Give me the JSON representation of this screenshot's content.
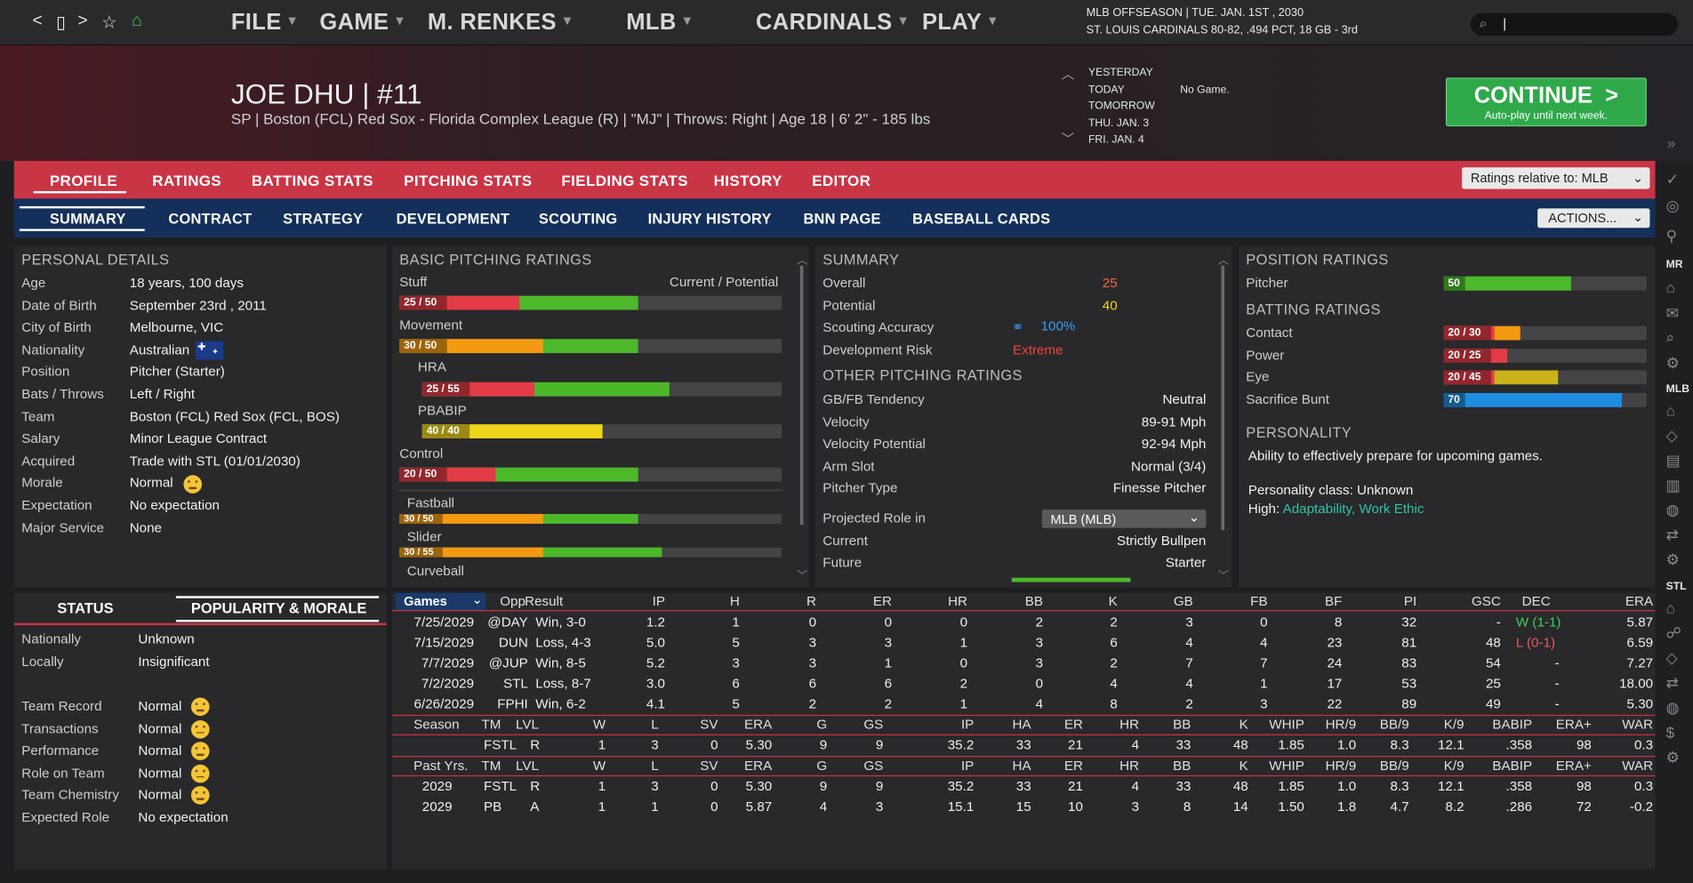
{
  "nav": {
    "back": "<",
    "page": "▯",
    "forward": ">",
    "star": "☆",
    "home": "⌂"
  },
  "menus": [
    "FILE",
    "GAME",
    "M. RENKES",
    "MLB",
    "CARDINALS",
    "PLAY"
  ],
  "info": {
    "line1": "MLB OFFSEASON  |  TUE. JAN. 1ST , 2030",
    "line2": "ST. LOUIS CARDINALS  80-82, .494 PCT, 18 GB - 3rd"
  },
  "search": {
    "value": "|"
  },
  "player": {
    "name": "JOE DHU  |  #11",
    "line": "SP | Boston (FCL) Red Sox - Florida Complex League (R)  |  \"MJ\" | Throws: Right  |  Age 18  |  6' 2\" - 185 lbs"
  },
  "schedule": {
    "days": [
      "YESTERDAY",
      "TODAY",
      "TOMORROW",
      "THU. JAN. 3",
      "FRI. JAN. 4"
    ],
    "today_note": "No Game."
  },
  "continue": {
    "label": "CONTINUE",
    "arrow": ">",
    "sub": "Auto-play until next week."
  },
  "tabs_main": [
    "PROFILE",
    "RATINGS",
    "BATTING STATS",
    "PITCHING STATS",
    "FIELDING STATS",
    "HISTORY",
    "EDITOR"
  ],
  "ratings_relative": "Ratings relative to: MLB",
  "tabs_sub": [
    "SUMMARY",
    "CONTRACT",
    "STRATEGY",
    "DEVELOPMENT",
    "SCOUTING",
    "INJURY HISTORY",
    "BNN PAGE",
    "BASEBALL CARDS"
  ],
  "actions": "ACTIONS...",
  "personal": {
    "title": "PERSONAL DETAILS",
    "rows": [
      {
        "label": "Age",
        "value": "18 years, 100 days"
      },
      {
        "label": "Date of Birth",
        "value": "September 23rd , 2011"
      },
      {
        "label": "City of Birth",
        "value": "Melbourne, VIC"
      },
      {
        "label": "Nationality",
        "value": "Australian"
      },
      {
        "label": "Position",
        "value": "Pitcher (Starter)"
      },
      {
        "label": "Bats / Throws",
        "value": "Left / Right"
      },
      {
        "label": "Team",
        "value": "Boston (FCL) Red Sox (FCL, BOS)"
      },
      {
        "label": "Salary",
        "value": "Minor League Contract"
      },
      {
        "label": "Acquired",
        "value": "Trade with STL (01/01/2030)"
      },
      {
        "label": "Morale",
        "value": "Normal"
      },
      {
        "label": "Expectation",
        "value": "No expectation"
      },
      {
        "label": "Major Service",
        "value": "None"
      }
    ]
  },
  "pitching": {
    "title": "BASIC PITCHING RATINGS",
    "legend": "Current / Potential",
    "colors": {
      "red": "#e23b46",
      "orange": "#f39a12",
      "yellow": "#f0d51a",
      "green": "#4cb82a",
      "blue": "#1f8de0"
    },
    "items": [
      {
        "label": "Stuff",
        "badge": "25 / 50",
        "cur": 25,
        "pot": 50,
        "color": "#e23b46"
      },
      {
        "label": "Movement",
        "badge": "30 / 50",
        "cur": 30,
        "pot": 50,
        "color": "#f39a12"
      },
      {
        "label": "HRA",
        "badge": "25 / 55",
        "cur": 25,
        "pot": 55,
        "color": "#e23b46"
      },
      {
        "label": "PBABIP",
        "badge": "40 / 40",
        "cur": 40,
        "pot": 40,
        "color": "#f0d51a"
      },
      {
        "label": "Control",
        "badge": "20 / 50",
        "cur": 20,
        "pot": 50,
        "color": "#e23b46"
      },
      {
        "label": "Fastball",
        "badge": "30 / 50",
        "cur": 30,
        "pot": 50,
        "color": "#f39a12"
      },
      {
        "label": "Slider",
        "badge": "30 / 55",
        "cur": 30,
        "pot": 55,
        "color": "#f39a12"
      },
      {
        "label": "Curveball",
        "badge": "",
        "cur": 0,
        "pot": 0,
        "color": "#f39a12"
      }
    ]
  },
  "summary": {
    "title": "SUMMARY",
    "overall_label": "Overall",
    "overall": "25",
    "potential_label": "Potential",
    "potential": "40",
    "accuracy_label": "Scouting Accuracy",
    "accuracy": "100%",
    "risk_label": "Development Risk",
    "risk": "Extreme",
    "other_title": "OTHER PITCHING RATINGS",
    "other": [
      {
        "label": "GB/FB Tendency",
        "value": "Neutral"
      },
      {
        "label": "Velocity",
        "value": "89-91 Mph"
      },
      {
        "label": "Velocity Potential",
        "value": "92-94 Mph"
      },
      {
        "label": "Arm Slot",
        "value": "Normal (3/4)"
      },
      {
        "label": "Pitcher Type",
        "value": "Finesse Pitcher"
      }
    ],
    "projected_label": "Projected Role in",
    "projected_value": "MLB (MLB)",
    "current_label": "Current",
    "current_value": "Strictly Bullpen",
    "future_label": "Future",
    "future_value": "Starter"
  },
  "position": {
    "title": "POSITION RATINGS",
    "items": [
      {
        "label": "Pitcher",
        "badge": "50",
        "cur": 50,
        "pot": 50,
        "color": "#4cb82a"
      }
    ],
    "batting_title": "BATTING RATINGS",
    "batting": [
      {
        "label": "Contact",
        "badge": "20 / 30",
        "cur": 20,
        "pot": 30,
        "color": "#e23b46",
        "potcolor": "#f39a12"
      },
      {
        "label": "Power",
        "badge": "20 / 25",
        "cur": 20,
        "pot": 25,
        "color": "#e23b46",
        "potcolor": "#e23b46"
      },
      {
        "label": "Eye",
        "badge": "20 / 45",
        "cur": 20,
        "pot": 45,
        "color": "#e23b46",
        "potcolor": "#c9b21a"
      },
      {
        "label": "Sacrifice Bunt",
        "badge": "70",
        "cur": 70,
        "pot": 70,
        "color": "#1f8de0",
        "potcolor": "#1f8de0"
      }
    ],
    "personality_title": "PERSONALITY",
    "personality_text": "Ability to effectively prepare for upcoming games.",
    "personality_class": "Personality class: Unknown",
    "high_label": "High:",
    "high_value": "Adaptability, Work Ethic"
  },
  "status": {
    "tab1": "STATUS",
    "tab2": "POPULARITY & MORALE",
    "rows1": [
      {
        "label": "Nationally",
        "value": "Unknown"
      },
      {
        "label": "Locally",
        "value": "Insignificant"
      }
    ],
    "rows2": [
      {
        "label": "Team Record",
        "value": "Normal"
      },
      {
        "label": "Transactions",
        "value": "Normal"
      },
      {
        "label": "Performance",
        "value": "Normal"
      },
      {
        "label": "Role on Team",
        "value": "Normal"
      },
      {
        "label": "Team Chemistry",
        "value": "Normal"
      },
      {
        "label": "Expected Role",
        "value": "No expectation"
      }
    ]
  },
  "games": {
    "select": "Games",
    "headers": [
      "Opp",
      "Result",
      "IP",
      "H",
      "R",
      "ER",
      "HR",
      "BB",
      "K",
      "GB",
      "FB",
      "BF",
      "PI",
      "GSC",
      "DEC",
      "ERA"
    ],
    "rows": [
      [
        "7/25/2029",
        "@DAY",
        "Win, 3-0",
        "1.2",
        "1",
        "0",
        "0",
        "0",
        "2",
        "2",
        "3",
        "0",
        "8",
        "32",
        "-",
        "W (1-1)",
        "5.87"
      ],
      [
        "7/15/2029",
        "DUN",
        "Loss, 4-3",
        "5.0",
        "5",
        "3",
        "3",
        "1",
        "3",
        "6",
        "4",
        "4",
        "23",
        "81",
        "48",
        "L (0-1)",
        "6.59"
      ],
      [
        "7/7/2029",
        "@JUP",
        "Win, 8-5",
        "5.2",
        "3",
        "3",
        "1",
        "0",
        "3",
        "2",
        "7",
        "7",
        "24",
        "83",
        "54",
        "-",
        "7.27"
      ],
      [
        "7/2/2029",
        "STL",
        "Loss, 8-7",
        "3.0",
        "6",
        "6",
        "6",
        "2",
        "0",
        "4",
        "4",
        "1",
        "17",
        "53",
        "25",
        "-",
        "18.00"
      ],
      [
        "6/26/2029",
        "FPHI",
        "Win, 6-2",
        "4.1",
        "5",
        "2",
        "2",
        "1",
        "4",
        "8",
        "2",
        "3",
        "22",
        "89",
        "49",
        "-",
        "5.30"
      ]
    ]
  },
  "season": {
    "headers": [
      "Season",
      "TM",
      "LVL",
      "W",
      "L",
      "SV",
      "ERA",
      "G",
      "GS",
      "IP",
      "HA",
      "ER",
      "HR",
      "BB",
      "K",
      "WHIP",
      "HR/9",
      "BB/9",
      "K/9",
      "BABIP",
      "ERA+",
      "WAR"
    ],
    "rows": [
      [
        "",
        "FSTL",
        "R",
        "1",
        "3",
        "0",
        "5.30",
        "9",
        "9",
        "35.2",
        "33",
        "21",
        "4",
        "33",
        "48",
        "1.85",
        "1.0",
        "8.3",
        "12.1",
        ".358",
        "98",
        "0.3"
      ]
    ]
  },
  "past": {
    "headers": [
      "Past Yrs.",
      "TM",
      "LVL",
      "W",
      "L",
      "SV",
      "ERA",
      "G",
      "GS",
      "IP",
      "HA",
      "ER",
      "HR",
      "BB",
      "K",
      "WHIP",
      "HR/9",
      "BB/9",
      "K/9",
      "BABIP",
      "ERA+",
      "WAR"
    ],
    "rows": [
      [
        "2029",
        "FSTL",
        "R",
        "1",
        "3",
        "0",
        "5.30",
        "9",
        "9",
        "35.2",
        "33",
        "21",
        "4",
        "33",
        "48",
        "1.85",
        "1.0",
        "8.3",
        "12.1",
        ".358",
        "98",
        "0.3"
      ],
      [
        "2029",
        "PB",
        "A",
        "1",
        "1",
        "0",
        "5.87",
        "4",
        "3",
        "15.1",
        "15",
        "10",
        "3",
        "8",
        "14",
        "1.50",
        "1.8",
        "4.7",
        "8.2",
        ".286",
        "72",
        "-0.2"
      ]
    ]
  },
  "sidebar": {
    "mr": "MR",
    "mlb": "MLB",
    "stl": "STL"
  }
}
